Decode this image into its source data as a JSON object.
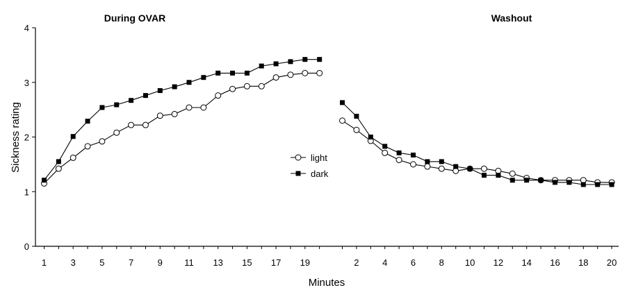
{
  "chart_data": {
    "type": "line",
    "ylabel": "Sickness rating",
    "xlabel": "Minutes",
    "ylim": [
      0,
      4
    ],
    "yticks": [
      0,
      1,
      2,
      3,
      4
    ],
    "grid": false,
    "legend_position": "center",
    "panels": [
      {
        "title": "During OVAR",
        "x": [
          1,
          2,
          3,
          4,
          5,
          6,
          7,
          8,
          9,
          10,
          11,
          12,
          13,
          14,
          15,
          16,
          17,
          18,
          19,
          20
        ],
        "xtick_labels": [
          1,
          3,
          5,
          7,
          9,
          11,
          13,
          15,
          17,
          19
        ],
        "series": [
          {
            "name": "light",
            "marker": "open-circle",
            "values": [
              1.15,
              1.42,
              1.62,
              1.83,
              1.92,
              2.08,
              2.22,
              2.22,
              2.39,
              2.42,
              2.54,
              2.54,
              2.76,
              2.88,
              2.93,
              2.93,
              3.09,
              3.14,
              3.17,
              3.17
            ]
          },
          {
            "name": "dark",
            "marker": "filled-square",
            "values": [
              1.21,
              1.55,
              2.01,
              2.29,
              2.54,
              2.59,
              2.67,
              2.76,
              2.85,
              2.92,
              3.0,
              3.09,
              3.17,
              3.17,
              3.17,
              3.3,
              3.34,
              3.38,
              3.42,
              3.42
            ]
          }
        ]
      },
      {
        "title": "Washout",
        "x": [
          1,
          2,
          3,
          4,
          5,
          6,
          7,
          8,
          9,
          10,
          11,
          12,
          13,
          14,
          15,
          16,
          17,
          18,
          19,
          20
        ],
        "xtick_labels": [
          2,
          4,
          6,
          8,
          10,
          12,
          14,
          16,
          18,
          20
        ],
        "series": [
          {
            "name": "light",
            "marker": "open-circle",
            "values": [
              2.3,
              2.13,
              1.93,
              1.71,
              1.58,
              1.5,
              1.46,
              1.42,
              1.38,
              1.42,
              1.42,
              1.38,
              1.33,
              1.25,
              1.21,
              1.21,
              1.21,
              1.21,
              1.17,
              1.17
            ]
          },
          {
            "name": "dark",
            "marker": "filled-square",
            "values": [
              2.63,
              2.38,
              2.0,
              1.83,
              1.71,
              1.67,
              1.55,
              1.55,
              1.46,
              1.42,
              1.3,
              1.3,
              1.21,
              1.21,
              1.21,
              1.17,
              1.17,
              1.13,
              1.13,
              1.13
            ]
          }
        ]
      }
    ],
    "legend": [
      {
        "name": "light",
        "marker": "open-circle"
      },
      {
        "name": "dark",
        "marker": "filled-square"
      }
    ]
  }
}
